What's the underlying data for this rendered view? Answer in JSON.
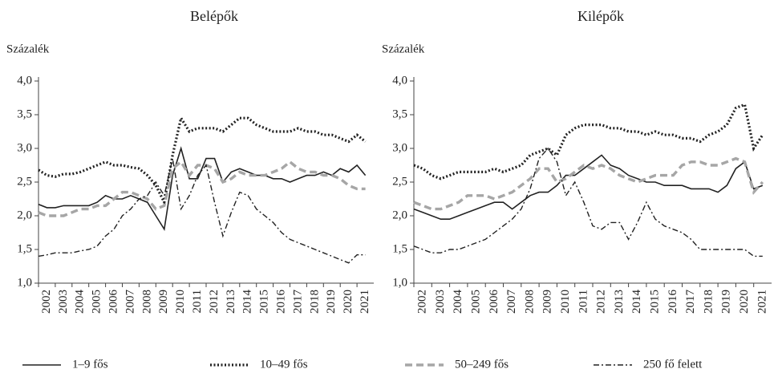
{
  "chart_data": [
    {
      "type": "line",
      "title": "Belépők",
      "y_label": "Százalék",
      "xlim": [
        2002,
        2022
      ],
      "xticks": [
        2002,
        2003,
        2004,
        2005,
        2006,
        2007,
        2008,
        2009,
        2010,
        2011,
        2012,
        2013,
        2014,
        2015,
        2016,
        2017,
        2018,
        2019,
        2020,
        2021
      ],
      "ylim": [
        1,
        4
      ],
      "yticks": [
        {
          "value": 1,
          "label": "1,0"
        },
        {
          "value": 1.5,
          "label": "1,5"
        },
        {
          "value": 2,
          "label": "2,0"
        },
        {
          "value": 2.5,
          "label": "2,5"
        },
        {
          "value": 3,
          "label": "3,0"
        },
        {
          "value": 3.5,
          "label": "3,5"
        },
        {
          "value": 4,
          "label": "4,0"
        }
      ],
      "x": [
        2002,
        2002.5,
        2003,
        2003.5,
        2004,
        2004.5,
        2005,
        2005.5,
        2006,
        2006.5,
        2007,
        2007.5,
        2008,
        2008.5,
        2009,
        2009.5,
        2010,
        2010.5,
        2011,
        2011.5,
        2012,
        2012.5,
        2013,
        2013.5,
        2014,
        2014.5,
        2015,
        2015.5,
        2016,
        2016.5,
        2017,
        2017.5,
        2018,
        2018.5,
        2019,
        2019.5,
        2020,
        2020.5,
        2021,
        2021.5
      ],
      "series": [
        {
          "values": [
            2.17,
            2.12,
            2.12,
            2.15,
            2.15,
            2.15,
            2.15,
            2.2,
            2.3,
            2.25,
            2.25,
            2.3,
            2.25,
            2.2,
            2.0,
            1.8,
            2.6,
            3.0,
            2.55,
            2.55,
            2.85,
            2.85,
            2.5,
            2.65,
            2.7,
            2.65,
            2.6,
            2.6,
            2.55,
            2.55,
            2.5,
            2.55,
            2.6,
            2.6,
            2.65,
            2.6,
            2.7,
            2.65,
            2.75,
            2.6
          ]
        },
        {
          "values": [
            2.68,
            2.6,
            2.58,
            2.62,
            2.62,
            2.65,
            2.7,
            2.75,
            2.8,
            2.75,
            2.75,
            2.72,
            2.7,
            2.6,
            2.45,
            2.2,
            2.9,
            3.45,
            3.25,
            3.3,
            3.3,
            3.3,
            3.25,
            3.35,
            3.45,
            3.45,
            3.35,
            3.3,
            3.25,
            3.25,
            3.25,
            3.3,
            3.25,
            3.25,
            3.2,
            3.2,
            3.15,
            3.1,
            3.2,
            3.1
          ]
        },
        {
          "values": [
            2.05,
            2.0,
            2.0,
            2.0,
            2.05,
            2.1,
            2.1,
            2.15,
            2.15,
            2.25,
            2.35,
            2.35,
            2.3,
            2.25,
            2.1,
            2.15,
            2.7,
            2.8,
            2.6,
            2.75,
            2.75,
            2.7,
            2.5,
            2.55,
            2.65,
            2.6,
            2.6,
            2.6,
            2.65,
            2.7,
            2.8,
            2.7,
            2.65,
            2.65,
            2.6,
            2.6,
            2.55,
            2.45,
            2.4,
            2.4
          ]
        },
        {
          "values": [
            1.4,
            1.42,
            1.45,
            1.45,
            1.45,
            1.48,
            1.5,
            1.55,
            1.7,
            1.8,
            2.0,
            2.1,
            2.25,
            2.3,
            2.5,
            2.3,
            2.85,
            2.1,
            2.3,
            2.6,
            2.75,
            2.2,
            1.7,
            2.05,
            2.35,
            2.3,
            2.1,
            2.0,
            1.9,
            1.75,
            1.65,
            1.6,
            1.55,
            1.5,
            1.45,
            1.4,
            1.35,
            1.3,
            1.42,
            1.42
          ]
        }
      ]
    },
    {
      "type": "line",
      "title": "Kilépők",
      "y_label": "Százalék",
      "xlim": [
        2002,
        2022
      ],
      "xticks": [
        2002,
        2003,
        2004,
        2005,
        2006,
        2007,
        2008,
        2009,
        2010,
        2011,
        2012,
        2013,
        2014,
        2015,
        2016,
        2017,
        2018,
        2019,
        2020,
        2021
      ],
      "ylim": [
        1,
        4
      ],
      "yticks": [
        {
          "value": 1,
          "label": "1,0"
        },
        {
          "value": 1.5,
          "label": "1,5"
        },
        {
          "value": 2,
          "label": "2,0"
        },
        {
          "value": 2.5,
          "label": "2,5"
        },
        {
          "value": 3,
          "label": "3,0"
        },
        {
          "value": 3.5,
          "label": "3,5"
        },
        {
          "value": 4,
          "label": "4,0"
        }
      ],
      "x": [
        2002,
        2002.5,
        2003,
        2003.5,
        2004,
        2004.5,
        2005,
        2005.5,
        2006,
        2006.5,
        2007,
        2007.5,
        2008,
        2008.5,
        2009,
        2009.5,
        2010,
        2010.5,
        2011,
        2011.5,
        2012,
        2012.5,
        2013,
        2013.5,
        2014,
        2014.5,
        2015,
        2015.5,
        2016,
        2016.5,
        2017,
        2017.5,
        2018,
        2018.5,
        2019,
        2019.5,
        2020,
        2020.5,
        2021,
        2021.5
      ],
      "series": [
        {
          "values": [
            2.1,
            2.05,
            2.0,
            1.95,
            1.95,
            2.0,
            2.05,
            2.1,
            2.15,
            2.2,
            2.2,
            2.1,
            2.2,
            2.3,
            2.35,
            2.35,
            2.45,
            2.6,
            2.6,
            2.7,
            2.8,
            2.9,
            2.75,
            2.7,
            2.6,
            2.55,
            2.5,
            2.5,
            2.45,
            2.45,
            2.45,
            2.4,
            2.4,
            2.4,
            2.35,
            2.45,
            2.7,
            2.8,
            2.4,
            2.45
          ]
        },
        {
          "values": [
            2.75,
            2.7,
            2.6,
            2.55,
            2.6,
            2.65,
            2.65,
            2.65,
            2.65,
            2.7,
            2.65,
            2.7,
            2.75,
            2.9,
            2.95,
            3.0,
            2.9,
            3.2,
            3.3,
            3.35,
            3.35,
            3.35,
            3.3,
            3.3,
            3.25,
            3.25,
            3.2,
            3.25,
            3.2,
            3.2,
            3.15,
            3.15,
            3.1,
            3.2,
            3.25,
            3.35,
            3.6,
            3.65,
            3.0,
            3.2
          ]
        },
        {
          "values": [
            2.2,
            2.15,
            2.1,
            2.1,
            2.15,
            2.2,
            2.3,
            2.3,
            2.3,
            2.25,
            2.3,
            2.35,
            2.45,
            2.55,
            2.7,
            2.7,
            2.5,
            2.55,
            2.65,
            2.75,
            2.7,
            2.75,
            2.7,
            2.6,
            2.55,
            2.5,
            2.55,
            2.6,
            2.6,
            2.6,
            2.75,
            2.8,
            2.8,
            2.75,
            2.75,
            2.8,
            2.85,
            2.8,
            2.35,
            2.5
          ]
        },
        {
          "values": [
            1.55,
            1.5,
            1.45,
            1.45,
            1.5,
            1.5,
            1.55,
            1.6,
            1.65,
            1.75,
            1.85,
            1.95,
            2.1,
            2.4,
            2.85,
            3.0,
            2.8,
            2.3,
            2.5,
            2.2,
            1.85,
            1.8,
            1.9,
            1.9,
            1.65,
            1.9,
            2.2,
            1.95,
            1.85,
            1.8,
            1.75,
            1.65,
            1.5,
            1.5,
            1.5,
            1.5,
            1.5,
            1.5,
            1.4,
            1.4
          ]
        }
      ]
    }
  ],
  "legend": [
    {
      "name": "1–9 fős",
      "color": "#222222",
      "dash": "solid"
    },
    {
      "name": "10–49 fős",
      "color": "#222222",
      "dash": "dotted"
    },
    {
      "name": "50–249 fős",
      "color": "#a6a6a6",
      "dash": "dashed"
    },
    {
      "name": "250 fő felett",
      "color": "#222222",
      "dash": "dashdot"
    }
  ]
}
